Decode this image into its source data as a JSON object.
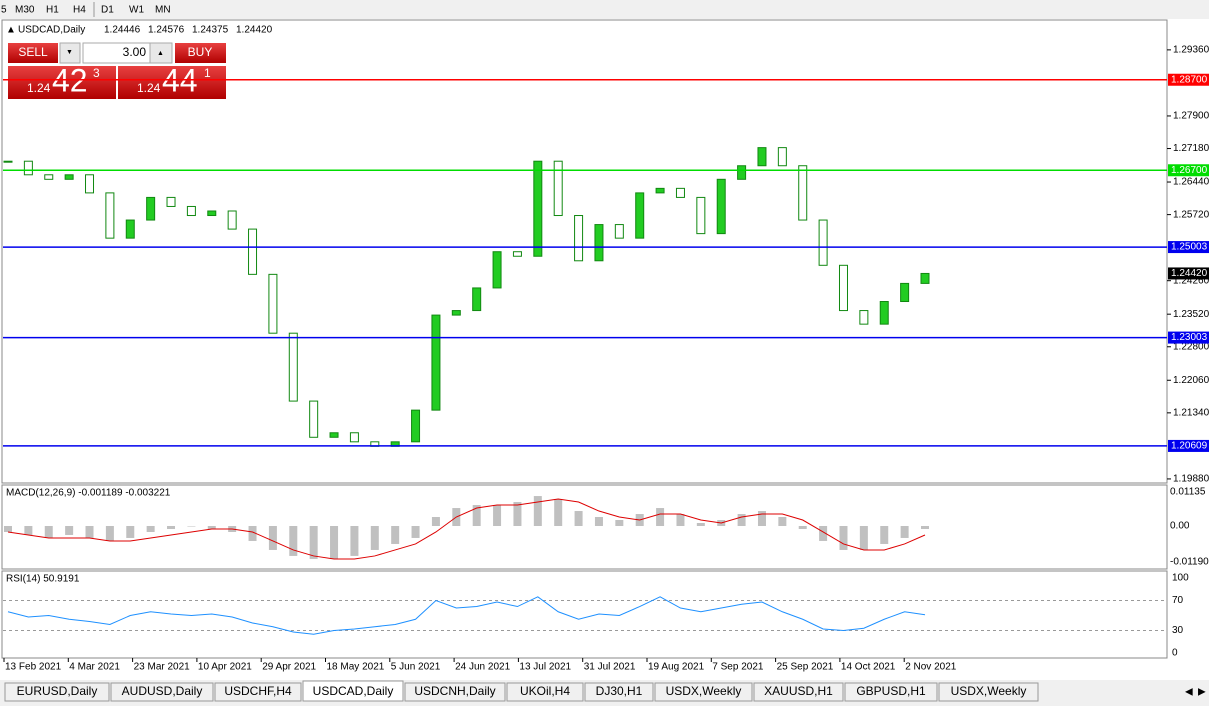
{
  "toolbar": {
    "timeframes": [
      "5",
      "M30",
      "H1",
      "H4",
      "D1",
      "W1",
      "MN"
    ]
  },
  "header": {
    "symbol": "USDCAD,Daily",
    "ohlc": [
      "1.24446",
      "1.24576",
      "1.24375",
      "1.24420"
    ]
  },
  "trade_panel": {
    "sell": "SELL",
    "buy": "BUY",
    "lots": "3.00",
    "sell_price": {
      "big": "1.24",
      "main": "42",
      "sup": "3"
    },
    "buy_price": {
      "big": "1.24",
      "main": "44",
      "sup": "1"
    }
  },
  "price_chart": {
    "type": "candlestick",
    "ylim": [
      1.1979,
      1.3002
    ],
    "yticks": [
      {
        "value": 1.2936,
        "label": "1.29360"
      },
      {
        "value": 1.279,
        "label": "1.27900"
      },
      {
        "value": 1.2718,
        "label": "1.27180"
      },
      {
        "value": 1.2644,
        "label": "1.26440"
      },
      {
        "value": 1.2572,
        "label": "1.25720"
      },
      {
        "value": 1.2426,
        "label": "1.24260"
      },
      {
        "value": 1.2352,
        "label": "1.23520"
      },
      {
        "value": 1.228,
        "label": "1.22800"
      },
      {
        "value": 1.2206,
        "label": "1.22060"
      },
      {
        "value": 1.2134,
        "label": "1.21340"
      },
      {
        "value": 1.1988,
        "label": "1.19880"
      }
    ],
    "levels": [
      {
        "value": 1.287,
        "label": "1.28700",
        "color": "#ff0000"
      },
      {
        "value": 1.267,
        "label": "1.26700",
        "color": "#00dd00"
      },
      {
        "value": 1.25003,
        "label": "1.25003",
        "color": "#0000ee"
      },
      {
        "value": 1.23003,
        "label": "1.23003",
        "color": "#0000ee"
      },
      {
        "value": 1.20609,
        "label": "1.20609",
        "color": "#0000ee"
      }
    ],
    "current": {
      "value": 1.2442,
      "label": "1.24420"
    },
    "up_color": "#22cc22",
    "down_color": "#ffffff",
    "closes": [
      1.269,
      1.266,
      1.265,
      1.266,
      1.262,
      1.252,
      1.256,
      1.261,
      1.259,
      1.257,
      1.258,
      1.254,
      1.244,
      1.231,
      1.216,
      1.208,
      1.209,
      1.207,
      1.206,
      1.207,
      1.214,
      1.235,
      1.236,
      1.241,
      1.249,
      1.248,
      1.269,
      1.257,
      1.247,
      1.255,
      1.252,
      1.262,
      1.263,
      1.261,
      1.253,
      1.265,
      1.268,
      1.272,
      1.268,
      1.256,
      1.246,
      1.236,
      1.233,
      1.238,
      1.242,
      1.2442
    ]
  },
  "macd": {
    "label": "MACD(12,26,9) -0.001189 -0.003221",
    "ylim": [
      -0.01436,
      0.01369
    ],
    "yticks": [
      0.01135,
      {
        "value": 0,
        "label": "0.00"
      },
      -0.011904
    ],
    "histogram": [
      -0.002,
      -0.003,
      -0.004,
      -0.003,
      -0.004,
      -0.005,
      -0.004,
      -0.002,
      -0.001,
      0.0,
      -0.001,
      -0.002,
      -0.005,
      -0.008,
      -0.01,
      -0.011,
      -0.011,
      -0.01,
      -0.008,
      -0.006,
      -0.004,
      0.003,
      0.006,
      0.007,
      0.007,
      0.008,
      0.01,
      0.009,
      0.005,
      0.003,
      0.002,
      0.004,
      0.006,
      0.004,
      0.001,
      0.002,
      0.004,
      0.005,
      0.003,
      -0.001,
      -0.005,
      -0.008,
      -0.008,
      -0.006,
      -0.004,
      -0.001
    ],
    "signal": [
      -0.002,
      -0.003,
      -0.004,
      -0.004,
      -0.004,
      -0.005,
      -0.005,
      -0.004,
      -0.003,
      -0.002,
      -0.001,
      -0.001,
      -0.002,
      -0.005,
      -0.008,
      -0.01,
      -0.011,
      -0.011,
      -0.01,
      -0.008,
      -0.006,
      -0.002,
      0.003,
      0.006,
      0.007,
      0.007,
      0.008,
      0.009,
      0.008,
      0.005,
      0.003,
      0.002,
      0.004,
      0.004,
      0.002,
      0.001,
      0.003,
      0.004,
      0.004,
      0.002,
      -0.002,
      -0.006,
      -0.008,
      -0.008,
      -0.006,
      -0.003
    ],
    "hist_color": "#c0c0c0",
    "signal_color": "#dd0000"
  },
  "rsi": {
    "label": "RSI(14) 50.9191",
    "ylim": [
      -6.8,
      109.5
    ],
    "yticks": [
      100,
      70,
      30,
      0
    ],
    "levels": [
      70,
      30
    ],
    "values": [
      55,
      48,
      50,
      45,
      42,
      38,
      50,
      55,
      52,
      50,
      52,
      48,
      40,
      35,
      28,
      25,
      30,
      32,
      35,
      38,
      45,
      70,
      60,
      62,
      68,
      62,
      75,
      55,
      45,
      52,
      50,
      62,
      75,
      60,
      55,
      60,
      65,
      68,
      55,
      45,
      32,
      30,
      33,
      45,
      55,
      51
    ],
    "color": "#1e90ff"
  },
  "dates": [
    "13 Feb 2021",
    "4 Mar 2021",
    "23 Mar 2021",
    "10 Apr 2021",
    "29 Apr 2021",
    "18 May 2021",
    "5 Jun 2021",
    "24 Jun 2021",
    "13 Jul 2021",
    "31 Jul 2021",
    "19 Aug 2021",
    "7 Sep 2021",
    "25 Sep 2021",
    "14 Oct 2021",
    "2 Nov 2021"
  ],
  "tabs": [
    "EURUSD,Daily",
    "AUDUSD,Daily",
    "USDCHF,H4",
    "USDCAD,Daily",
    "USDCNH,Daily",
    "UKOil,H4",
    "DJ30,H1",
    "USDX,Weekly",
    "XAUUSD,H1",
    "GBPUSD,H1",
    "USDX,Weekly"
  ],
  "active_tab": 3
}
